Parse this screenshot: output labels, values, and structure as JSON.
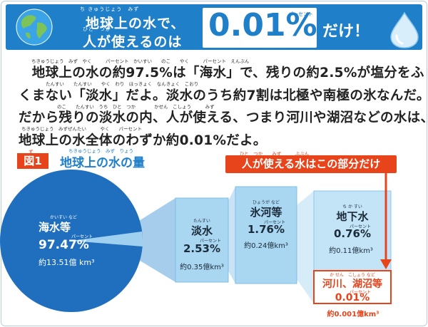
{
  "banner": {
    "title_line1": "地球上の水で、",
    "title_line1_ruby": "ち きゅうじょう　みず",
    "title_line2": "人が使えるのは",
    "title_line2_ruby": "ひと　つか",
    "big_percent": "0.01%",
    "percent_ruby": "パーセント",
    "suffix": "だけ！",
    "icons": {
      "globe": "globe-icon",
      "drop": "water-drop-icon"
    },
    "colors": {
      "banner_bg": "#1f7fc8",
      "accent": "#e8441c"
    }
  },
  "body": {
    "line1": "　地球上の水の約97.5%は「海水」で、残りの約2.5%が塩分をふ",
    "line2": "くまない「淡水」だよ。淡水のうち約7割は北極や南極の氷なんだ。",
    "line3": "だから残りの淡水の内、人が使える、つまり河川や湖沼などの水は、",
    "line4": "地球上の水全体のわずか約0.01%だよ。",
    "ruby1": "ちきゅうじょう　みず　やく　　　パーセント　かいすい　　のこ　　やく　　　パーセント　えんぶん",
    "ruby2": "たんすい　　たんすい　　やく　わり　ほっきょく　なんきょく　こおり",
    "ruby3": "のこ　　たんすい　うち　ひと　つか　　　　かせん　こしょう　　　みず",
    "ruby4": "ちきゅうじょう　みずぜんたい　　　やく　　パーセント"
  },
  "figure": {
    "badge": "図1",
    "badge_ruby": "ず",
    "title": "地球上の水の量",
    "title_ruby": "ちきゅうじょう　みず　りょう",
    "callout": "人が使える水はこの部分だけ",
    "callout_ruby": "ひと　つか　　みず　　　ぶぶん"
  },
  "segments": {
    "seawater": {
      "name": "海水等",
      "ruby": "かいすい など",
      "percent": "97.47%",
      "pct_ruby": "パーセント",
      "amount": "約13.51億 km³"
    },
    "freshwater": {
      "name": "淡水",
      "ruby": "たんすい",
      "percent": "2.53%",
      "pct_ruby": "パーセント",
      "amount": "約0.35億km³"
    },
    "glacier": {
      "name": "氷河等",
      "ruby": "ひょうが など",
      "percent": "1.76%",
      "pct_ruby": "パーセント",
      "amount": "約0.24億km³"
    },
    "groundwater": {
      "name": "地下水",
      "ruby": "ち か すい",
      "percent": "0.76%",
      "pct_ruby": "パーセント",
      "amount": "約0.11億km³"
    },
    "rivers": {
      "name": "河川、湖沼等",
      "ruby": "か せん　こしょう など",
      "percent": "0.01%",
      "pct_ruby": "パーセント",
      "amount": "約0.001億km³"
    }
  },
  "chart_data": {
    "type": "pie",
    "title": "地球上の水の量",
    "categories": [
      "海水等",
      "淡水"
    ],
    "values": [
      97.47,
      2.53
    ],
    "breakdown": [
      {
        "parent": "淡水",
        "categories": [
          "氷河等",
          "地下水",
          "河川、湖沼等"
        ],
        "values": [
          1.76,
          0.76,
          0.01
        ],
        "amounts": [
          "約0.24億km³",
          "約0.11億km³",
          "約0.001億km³"
        ]
      }
    ],
    "colors": {
      "seawater": "#1f6fbe",
      "freshwater": "#9fd0ef",
      "glacier": "#9fd0ef",
      "groundwater": "#bfe2f6",
      "rivers": "#ffffff"
    }
  }
}
